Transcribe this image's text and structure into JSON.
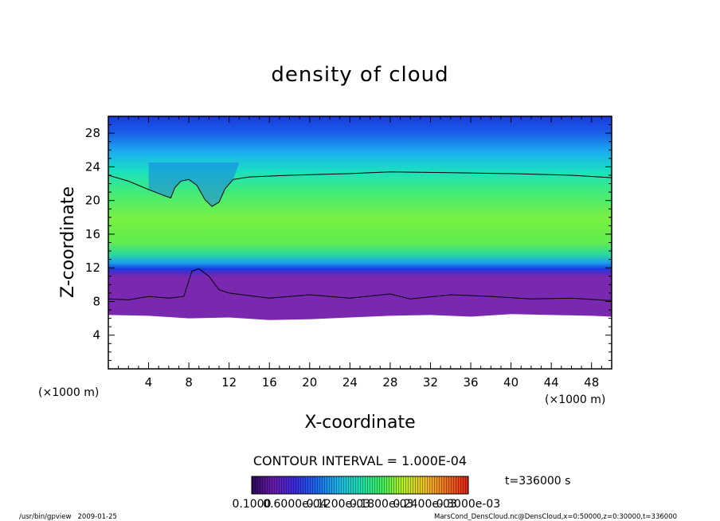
{
  "chart_data": {
    "type": "heatmap",
    "title": "density of cloud",
    "xlabel": "X-coordinate",
    "ylabel": "Z-coordinate",
    "x_unit": "(×1000 m)",
    "y_unit": "(×1000 m)",
    "xlim": [
      0,
      50
    ],
    "ylim": [
      0,
      30
    ],
    "x_ticks": [
      4,
      8,
      12,
      16,
      20,
      24,
      28,
      32,
      36,
      40,
      44,
      48
    ],
    "y_ticks": [
      4,
      8,
      12,
      16,
      20,
      24,
      28
    ],
    "contour_interval_label": "CONTOUR INTERVAL = 1.000E-04",
    "time_label": "t=336000 s",
    "colorbar_labels": [
      "0.1000",
      "0.6000e-04",
      "0.1200e-03",
      "0.1800e-03",
      "0.2400e-03",
      "0.3000e-03"
    ],
    "colorbar_range": [
      0.1,
      0.0003
    ],
    "colormap": [
      "#2a0a5a",
      "#6a1ab0",
      "#3a2ae0",
      "#1a6af0",
      "#1ab8e8",
      "#1ae0b0",
      "#40f060",
      "#b8f020",
      "#f0c020",
      "#f07020",
      "#e02010"
    ],
    "field_band_colors": {
      "top": "#1a3ae0",
      "upper": "#1ab0f0",
      "middle": "#20e8a0",
      "core": "#78f040",
      "lower_edge": "#1a3ae0",
      "base": "#7a28b0"
    },
    "cloud_top_contour": [
      [
        0,
        23
      ],
      [
        2,
        22.3
      ],
      [
        4,
        21.3
      ],
      [
        5.5,
        20.6
      ],
      [
        6.2,
        20.3
      ],
      [
        6.6,
        21.5
      ],
      [
        7.2,
        22.3
      ],
      [
        8,
        22.5
      ],
      [
        8.8,
        21.8
      ],
      [
        9.6,
        20.1
      ],
      [
        10.3,
        19.3
      ],
      [
        11,
        19.8
      ],
      [
        11.6,
        21.4
      ],
      [
        12.4,
        22.5
      ],
      [
        14,
        22.8
      ],
      [
        18,
        23
      ],
      [
        24,
        23.2
      ],
      [
        28,
        23.4
      ],
      [
        34,
        23.3
      ],
      [
        40,
        23.2
      ],
      [
        46,
        23
      ],
      [
        50,
        22.7
      ]
    ],
    "cloud_base_contour": [
      [
        0,
        8.3
      ],
      [
        2,
        8.2
      ],
      [
        4,
        8.6
      ],
      [
        6,
        8.4
      ],
      [
        7.5,
        8.6
      ],
      [
        8.3,
        11.6
      ],
      [
        9,
        11.9
      ],
      [
        10,
        11
      ],
      [
        11,
        9.4
      ],
      [
        12,
        9
      ],
      [
        16,
        8.4
      ],
      [
        20,
        8.8
      ],
      [
        24,
        8.4
      ],
      [
        28,
        8.9
      ],
      [
        30,
        8.3
      ],
      [
        34,
        8.8
      ],
      [
        38,
        8.6
      ],
      [
        42,
        8.3
      ],
      [
        46,
        8.4
      ],
      [
        50,
        8.1
      ]
    ],
    "cloud_bottom_edge": [
      [
        0,
        6.4
      ],
      [
        4,
        6.3
      ],
      [
        8,
        6
      ],
      [
        12,
        6.1
      ],
      [
        16,
        5.8
      ],
      [
        20,
        5.9
      ],
      [
        24,
        6.1
      ],
      [
        28,
        6.3
      ],
      [
        32,
        6.4
      ],
      [
        36,
        6.2
      ],
      [
        40,
        6.5
      ],
      [
        44,
        6.4
      ],
      [
        48,
        6.3
      ],
      [
        50,
        6.2
      ]
    ]
  },
  "footer": {
    "left": "/usr/bin/gpview   2009-01-25",
    "right": "MarsCond_DensCloud.nc@DensCloud,x=0:50000,z=0:30000,t=336000"
  }
}
